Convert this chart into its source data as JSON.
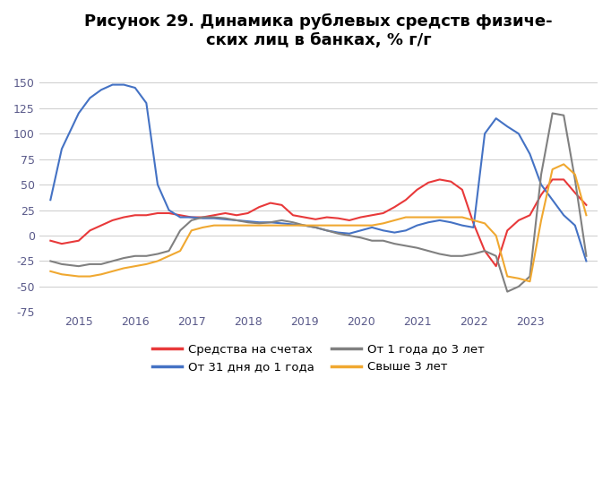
{
  "title": "Рисунок 29. Динамика рублевых средств физиче-\nских лиц в банках, % г/г",
  "ylim": [
    -75,
    175
  ],
  "yticks": [
    -75,
    -50,
    -25,
    0,
    25,
    50,
    75,
    100,
    125,
    150
  ],
  "xticks": [
    2015,
    2016,
    2017,
    2018,
    2019,
    2020,
    2021,
    2022,
    2023
  ],
  "legend": [
    {
      "label": "Средства на счетах",
      "color": "#e8393a"
    },
    {
      "label": "От 31 дня до 1 года",
      "color": "#4472c4"
    },
    {
      "label": "От 1 года до 3 лет",
      "color": "#808080"
    },
    {
      "label": "Свыше 3 лет",
      "color": "#f0a830"
    }
  ],
  "series": {
    "accounts": {
      "color": "#e8393a",
      "x": [
        2014.5,
        2014.7,
        2015.0,
        2015.2,
        2015.4,
        2015.6,
        2015.8,
        2016.0,
        2016.2,
        2016.4,
        2016.6,
        2016.8,
        2017.0,
        2017.2,
        2017.4,
        2017.6,
        2017.8,
        2018.0,
        2018.2,
        2018.4,
        2018.6,
        2018.8,
        2019.0,
        2019.2,
        2019.4,
        2019.6,
        2019.8,
        2020.0,
        2020.2,
        2020.4,
        2020.6,
        2020.8,
        2021.0,
        2021.2,
        2021.4,
        2021.6,
        2021.8,
        2022.0,
        2022.2,
        2022.4,
        2022.6,
        2022.8,
        2023.0,
        2023.2,
        2023.4,
        2023.6,
        2023.8,
        2024.0
      ],
      "y": [
        -5,
        -8,
        -5,
        5,
        10,
        15,
        18,
        20,
        20,
        22,
        22,
        20,
        18,
        18,
        20,
        22,
        20,
        22,
        28,
        32,
        30,
        20,
        18,
        16,
        18,
        17,
        15,
        18,
        20,
        22,
        28,
        35,
        45,
        52,
        55,
        53,
        45,
        12,
        -15,
        -30,
        5,
        15,
        20,
        40,
        55,
        55,
        42,
        30
      ]
    },
    "days31_1yr": {
      "color": "#4472c4",
      "x": [
        2014.5,
        2014.7,
        2015.0,
        2015.2,
        2015.4,
        2015.6,
        2015.8,
        2016.0,
        2016.2,
        2016.4,
        2016.6,
        2016.8,
        2017.0,
        2017.2,
        2017.4,
        2017.6,
        2017.8,
        2018.0,
        2018.2,
        2018.4,
        2018.6,
        2018.8,
        2019.0,
        2019.2,
        2019.4,
        2019.6,
        2019.8,
        2020.0,
        2020.2,
        2020.4,
        2020.6,
        2020.8,
        2021.0,
        2021.2,
        2021.4,
        2021.6,
        2021.8,
        2022.0,
        2022.2,
        2022.4,
        2022.6,
        2022.8,
        2023.0,
        2023.2,
        2023.4,
        2023.6,
        2023.8,
        2024.0
      ],
      "y": [
        35,
        85,
        120,
        135,
        143,
        148,
        148,
        145,
        130,
        50,
        25,
        18,
        18,
        17,
        17,
        16,
        15,
        14,
        13,
        13,
        12,
        11,
        10,
        8,
        5,
        3,
        2,
        5,
        8,
        5,
        3,
        5,
        10,
        13,
        15,
        13,
        10,
        8,
        100,
        115,
        107,
        100,
        80,
        50,
        35,
        20,
        10,
        -25
      ]
    },
    "yr1_3yr": {
      "color": "#808080",
      "x": [
        2014.5,
        2014.7,
        2015.0,
        2015.2,
        2015.4,
        2015.6,
        2015.8,
        2016.0,
        2016.2,
        2016.4,
        2016.6,
        2016.8,
        2017.0,
        2017.2,
        2017.4,
        2017.6,
        2017.8,
        2018.0,
        2018.2,
        2018.4,
        2018.6,
        2018.8,
        2019.0,
        2019.2,
        2019.4,
        2019.6,
        2019.8,
        2020.0,
        2020.2,
        2020.4,
        2020.6,
        2020.8,
        2021.0,
        2021.2,
        2021.4,
        2021.6,
        2021.8,
        2022.0,
        2022.2,
        2022.4,
        2022.6,
        2022.8,
        2023.0,
        2023.2,
        2023.4,
        2023.6,
        2023.8,
        2024.0
      ],
      "y": [
        -25,
        -28,
        -30,
        -28,
        -28,
        -25,
        -22,
        -20,
        -20,
        -18,
        -15,
        5,
        15,
        18,
        18,
        17,
        15,
        13,
        12,
        13,
        15,
        13,
        10,
        8,
        5,
        2,
        0,
        -2,
        -5,
        -5,
        -8,
        -10,
        -12,
        -15,
        -18,
        -20,
        -20,
        -18,
        -15,
        -20,
        -55,
        -50,
        -40,
        60,
        120,
        118,
        55,
        -20
      ]
    },
    "above3yr": {
      "color": "#f0a830",
      "x": [
        2014.5,
        2014.7,
        2015.0,
        2015.2,
        2015.4,
        2015.6,
        2015.8,
        2016.0,
        2016.2,
        2016.4,
        2016.6,
        2016.8,
        2017.0,
        2017.2,
        2017.4,
        2017.6,
        2017.8,
        2018.0,
        2018.2,
        2018.4,
        2018.6,
        2018.8,
        2019.0,
        2019.2,
        2019.4,
        2019.6,
        2019.8,
        2020.0,
        2020.2,
        2020.4,
        2020.6,
        2020.8,
        2021.0,
        2021.2,
        2021.4,
        2021.6,
        2021.8,
        2022.0,
        2022.2,
        2022.4,
        2022.6,
        2022.8,
        2023.0,
        2023.2,
        2023.4,
        2023.6,
        2023.8,
        2024.0
      ],
      "y": [
        -35,
        -38,
        -40,
        -40,
        -38,
        -35,
        -32,
        -30,
        -28,
        -25,
        -20,
        -15,
        5,
        8,
        10,
        10,
        10,
        10,
        10,
        10,
        10,
        10,
        10,
        10,
        10,
        10,
        10,
        10,
        10,
        12,
        15,
        18,
        18,
        18,
        18,
        18,
        18,
        15,
        12,
        0,
        -40,
        -42,
        -45,
        15,
        65,
        70,
        60,
        20
      ]
    }
  }
}
